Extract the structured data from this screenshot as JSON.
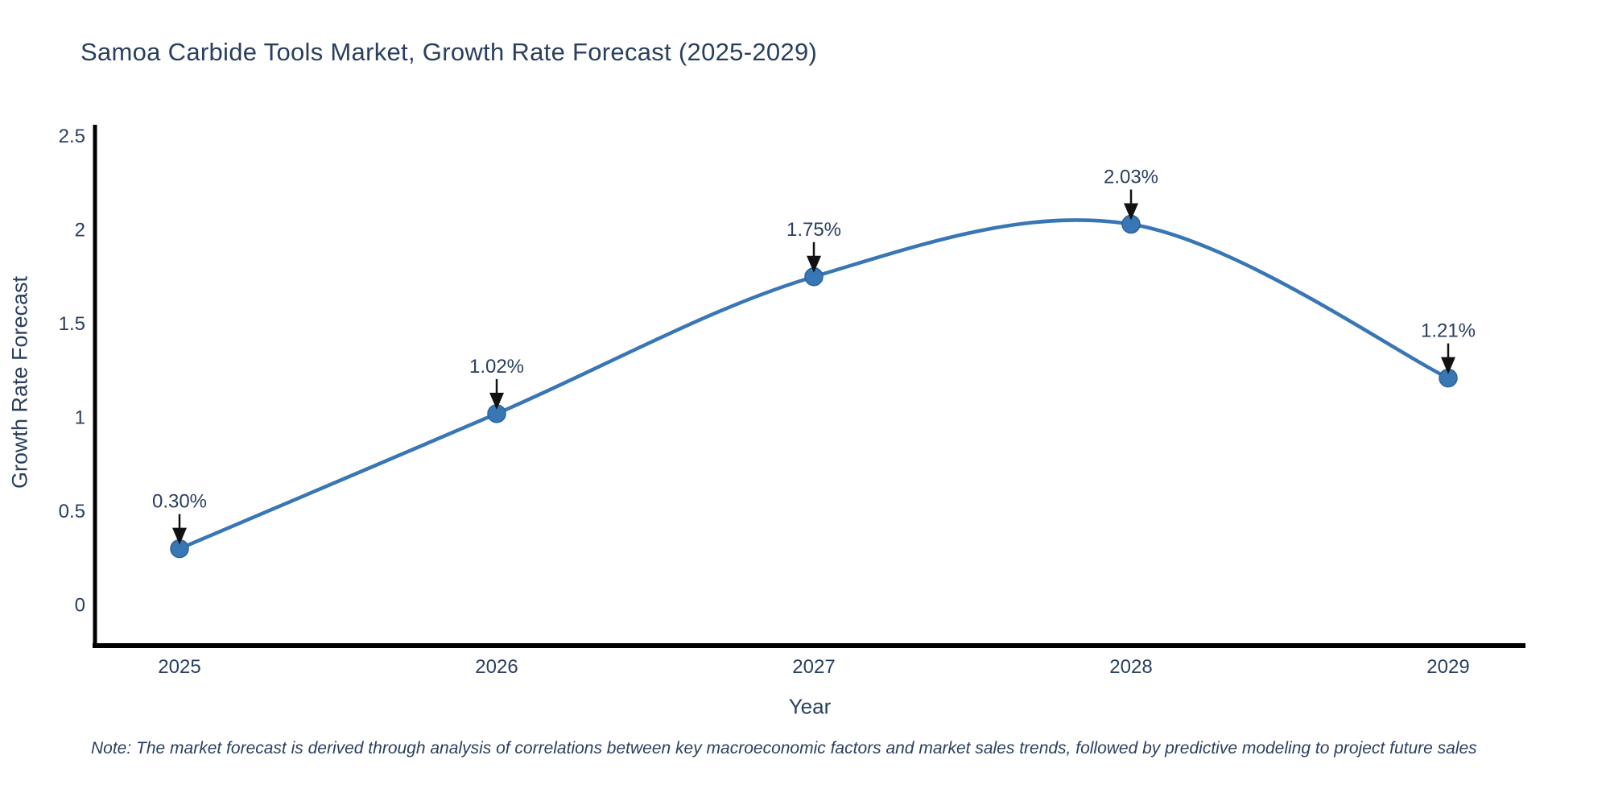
{
  "chart_data": {
    "type": "line",
    "title": "Samoa Carbide Tools Market, Growth Rate Forecast (2025-2029)",
    "xlabel": "Year",
    "ylabel": "Growth Rate Forecast",
    "note": "Note: The market forecast is derived through analysis of correlations between key macroeconomic factors and market sales trends, followed by predictive modeling to project future sales",
    "categories": [
      "2025",
      "2026",
      "2027",
      "2028",
      "2029"
    ],
    "values": [
      0.3,
      1.02,
      1.75,
      2.03,
      1.21
    ],
    "point_labels": [
      "0.30%",
      "1.02%",
      "1.75%",
      "2.03%",
      "1.21%"
    ],
    "ytick_values": [
      0,
      0.5,
      1,
      1.5,
      2,
      2.5
    ],
    "ytick_labels": [
      "0",
      "0.5",
      "1",
      "1.5",
      "2",
      "2.5"
    ],
    "ylim": [
      -0.22,
      2.57
    ],
    "line_shape": "spline",
    "grid": false,
    "legend": "none",
    "colors": {
      "line": "#3876B4",
      "marker": "#3876B4",
      "marker_edge": "#2A639C",
      "axis": "#000000",
      "text": "#2A3F5F",
      "arrow": "#111111",
      "background": "#FFFFFF"
    }
  }
}
